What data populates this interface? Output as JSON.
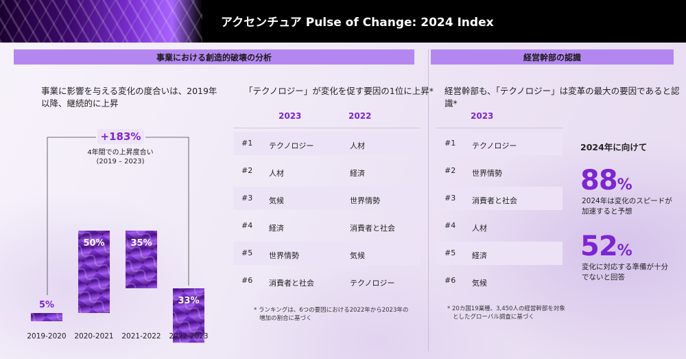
{
  "header": {
    "title": "アクセンチュア Pulse of Change: 2024 Index"
  },
  "sections": {
    "left": "事業における創造的破壊の分析",
    "right": "経営幹部の認識"
  },
  "panel1": {
    "subtitle_line1": "事業に影響を与える変化の度合いは、2019年",
    "subtitle_line2": "以降、継続的に上昇",
    "growth_badge": "+183%",
    "growth_note_line1": "4年間での上昇度合い",
    "growth_note_line2": "(2019 – 2023)"
  },
  "chart_data": {
    "type": "bar",
    "categories": [
      "2019-2020",
      "2020-2021",
      "2021-2022",
      "2022-2023"
    ],
    "values": [
      5,
      50,
      35,
      33
    ],
    "value_labels": [
      "5%",
      "50%",
      "35%",
      "33%"
    ],
    "bar_style": "stepped waterfall"
  },
  "panel2": {
    "subtitle": "「テクノロジー」が変化を促す要因の1位に上昇*",
    "col1": "2023",
    "col2": "2022",
    "rows": [
      {
        "rank": "#1",
        "y2023": "テクノロジー",
        "y2022": "人材"
      },
      {
        "rank": "#2",
        "y2023": "人材",
        "y2022": "経済"
      },
      {
        "rank": "#3",
        "y2023": "気候",
        "y2022": "世界情勢"
      },
      {
        "rank": "#4",
        "y2023": "経済",
        "y2022": "消費者と社会"
      },
      {
        "rank": "#5",
        "y2023": "世界情勢",
        "y2022": "気候"
      },
      {
        "rank": "#6",
        "y2023": "消費者と社会",
        "y2022": "テクノロジー"
      }
    ],
    "footnote_line1": "* ランキングは、6つの要因における2022年から2023年の",
    "footnote_line2": "増加の割合に基づく"
  },
  "panel3": {
    "subtitle": "経営幹部も、「テクノロジー」は変革の最大の要因であると認識*",
    "col1": "2023",
    "rows": [
      {
        "rank": "#1",
        "item": "テクノロジー"
      },
      {
        "rank": "#2",
        "item": "世界情勢"
      },
      {
        "rank": "#3",
        "item": "消費者と社会"
      },
      {
        "rank": "#4",
        "item": "人材"
      },
      {
        "rank": "#5",
        "item": "経済"
      },
      {
        "rank": "#6",
        "item": "気候"
      }
    ],
    "footnote_line1": "* 20カ国19業種、3,450人の経営幹部を対象",
    "footnote_line2": "としたグローバル調査に基づく",
    "stats_heading": "2024年に向けて",
    "stat1": {
      "value": "88",
      "unit": "%",
      "line1": "2024年は変化のスピードが",
      "line2": "加速すると予想"
    },
    "stat2": {
      "value": "52",
      "unit": "%",
      "line1": "変化に対応する準備が十分",
      "line2": "でないと回答"
    }
  },
  "colors": {
    "accent": "#7c24d6",
    "section_bar": "#b487f0",
    "bar_dark": "#3d0a6e",
    "bar_light": "#a058f0"
  }
}
